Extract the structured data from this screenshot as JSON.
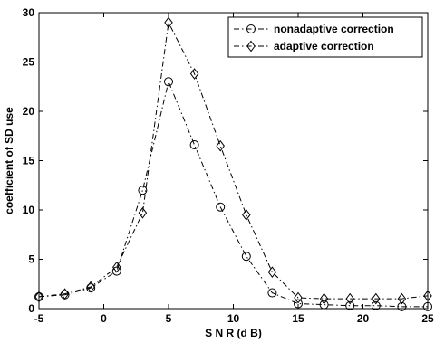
{
  "chart_data": {
    "type": "line",
    "xlabel": "S N R (d B)",
    "ylabel": "coefficient of SD use",
    "xlim": [
      -5,
      25
    ],
    "ylim": [
      0,
      30
    ],
    "xticks": [
      -5,
      0,
      5,
      10,
      15,
      20,
      25
    ],
    "yticks": [
      0,
      5,
      10,
      15,
      20,
      25,
      30
    ],
    "grid": false,
    "legend_position": "top-right",
    "series": [
      {
        "name": "nonadaptive correction",
        "marker": "circle",
        "line_style": "dash-dot",
        "x": [
          -5,
          -3,
          -1,
          1,
          3,
          5,
          7,
          9,
          11,
          13,
          15,
          17,
          19,
          21,
          23,
          25
        ],
        "y": [
          1.2,
          1.4,
          2.1,
          3.8,
          12.0,
          23.0,
          16.6,
          10.3,
          5.3,
          1.6,
          0.5,
          0.4,
          0.3,
          0.3,
          0.2,
          0.2
        ]
      },
      {
        "name": "adaptive correction",
        "marker": "diamond",
        "line_style": "dash-dot",
        "x": [
          -5,
          -3,
          -1,
          1,
          3,
          5,
          7,
          9,
          11,
          13,
          15,
          17,
          19,
          21,
          23,
          25
        ],
        "y": [
          1.2,
          1.5,
          2.2,
          4.2,
          9.7,
          29.0,
          23.8,
          16.5,
          9.5,
          3.7,
          1.1,
          1.0,
          1.0,
          1.0,
          1.0,
          1.3
        ]
      }
    ]
  }
}
